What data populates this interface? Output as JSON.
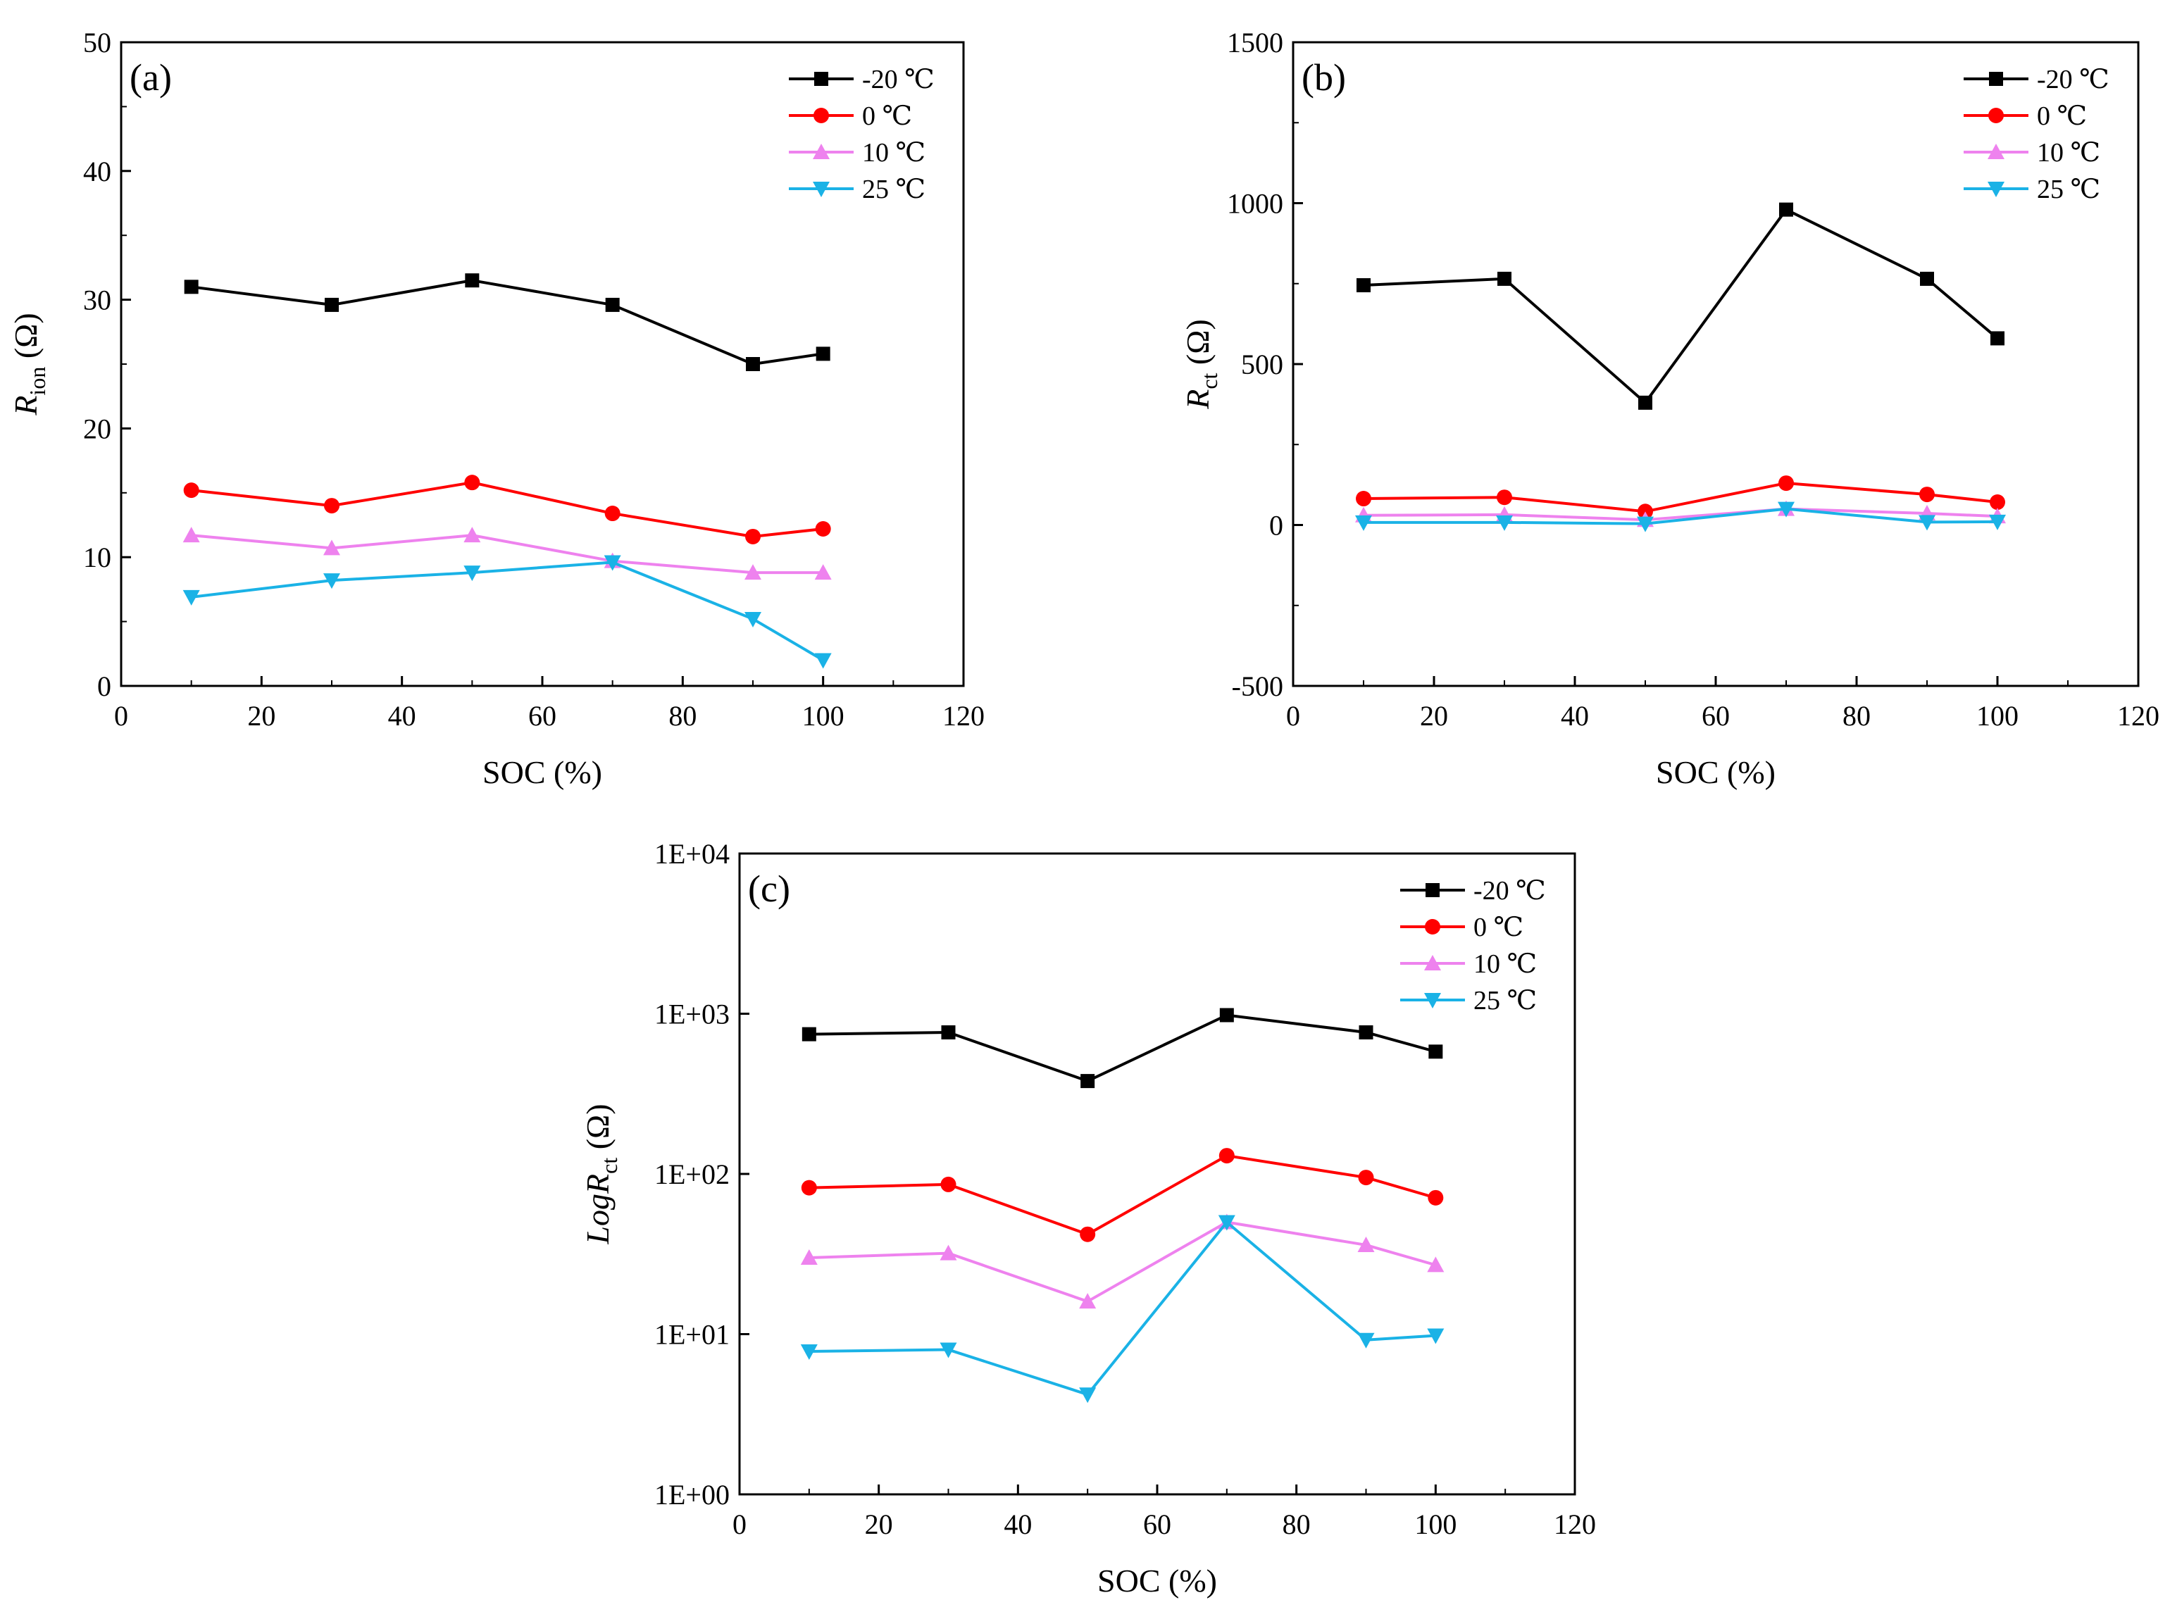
{
  "figure": {
    "x_axis_label": "SOC (%)",
    "legend_names": [
      "-20 ℃",
      "0 ℃",
      "10 ℃",
      "25 ℃"
    ],
    "series_colors": {
      "-20 ℃": "#000000",
      "0 ℃": "#ff0000",
      "10 ℃": "#ee82ee",
      "25 ℃": "#1ab2e6"
    },
    "series_markers": {
      "-20 ℃": "square",
      "0 ℃": "circle",
      "10 ℃": "triangle-up",
      "25 ℃": "triangle-down"
    }
  },
  "chart_data": [
    {
      "id": "a",
      "type": "line",
      "panel_label": "(a)",
      "xlabel": "SOC (%)",
      "ylabel_main": "R",
      "ylabel_sub": "ion",
      "ylabel_unit": " (Ω)",
      "ylabel_italic_prefix": "",
      "xlim": [
        0,
        120
      ],
      "ylim": [
        0,
        50
      ],
      "yscale": "linear",
      "xticks": [
        0,
        20,
        40,
        60,
        80,
        100,
        120
      ],
      "yticks": [
        0,
        10,
        20,
        30,
        40,
        50
      ],
      "ytick_labels": [
        "0",
        "10",
        "20",
        "30",
        "40",
        "50"
      ],
      "legend": "top-right",
      "x": [
        10,
        30,
        50,
        70,
        90,
        100
      ],
      "series": [
        {
          "name": "-20 ℃",
          "values": [
            31.0,
            29.6,
            31.5,
            29.6,
            25.0,
            25.8
          ]
        },
        {
          "name": "0 ℃",
          "values": [
            15.2,
            14.0,
            15.8,
            13.4,
            11.6,
            12.2
          ]
        },
        {
          "name": "10 ℃",
          "values": [
            11.7,
            10.7,
            11.7,
            9.7,
            8.8,
            8.8
          ]
        },
        {
          "name": "25 ℃",
          "values": [
            6.9,
            8.2,
            8.8,
            9.6,
            5.2,
            2.0
          ]
        }
      ]
    },
    {
      "id": "b",
      "type": "line",
      "panel_label": "(b)",
      "xlabel": "SOC (%)",
      "ylabel_main": "R",
      "ylabel_sub": "ct",
      "ylabel_unit": " (Ω)",
      "ylabel_italic_prefix": "",
      "xlim": [
        0,
        120
      ],
      "ylim": [
        -500,
        1500
      ],
      "yscale": "linear",
      "xticks": [
        0,
        20,
        40,
        60,
        80,
        100,
        120
      ],
      "yticks": [
        -500,
        0,
        500,
        1000,
        1500
      ],
      "ytick_labels": [
        "-500",
        "0",
        "500",
        "1000",
        "1500"
      ],
      "legend": "top-right",
      "x": [
        10,
        30,
        50,
        70,
        90,
        100
      ],
      "series": [
        {
          "name": "-20 ℃",
          "values": [
            745,
            765,
            380,
            980,
            765,
            580
          ]
        },
        {
          "name": "0 ℃",
          "values": [
            82,
            86,
            42,
            130,
            95,
            71
          ]
        },
        {
          "name": "10 ℃",
          "values": [
            30,
            32,
            16,
            50,
            36,
            27
          ]
        },
        {
          "name": "25 ℃",
          "values": [
            8,
            8,
            4,
            50,
            9,
            10
          ]
        }
      ]
    },
    {
      "id": "c",
      "type": "line",
      "panel_label": "(c)",
      "xlabel": "SOC (%)",
      "ylabel_main": "R",
      "ylabel_sub": "ct",
      "ylabel_unit": " (Ω)",
      "ylabel_italic_prefix": "Log",
      "xlim": [
        0,
        120
      ],
      "ylim": [
        1,
        10000
      ],
      "yscale": "log",
      "xticks": [
        0,
        20,
        40,
        60,
        80,
        100,
        120
      ],
      "yticks": [
        1,
        10,
        100,
        1000,
        10000
      ],
      "ytick_labels": [
        "1E+00",
        "1E+01",
        "1E+02",
        "1E+03",
        "1E+04"
      ],
      "legend": "top-right",
      "x": [
        10,
        30,
        50,
        70,
        90,
        100
      ],
      "series": [
        {
          "name": "-20 ℃",
          "values": [
            745,
            765,
            380,
            980,
            765,
            580
          ]
        },
        {
          "name": "0 ℃",
          "values": [
            82,
            86,
            42,
            130,
            95,
            71
          ]
        },
        {
          "name": "10 ℃",
          "values": [
            30,
            32,
            16,
            50,
            36,
            27
          ]
        },
        {
          "name": "25 ℃",
          "values": [
            7.8,
            8.0,
            4.2,
            50,
            9.2,
            9.8
          ]
        }
      ]
    }
  ]
}
